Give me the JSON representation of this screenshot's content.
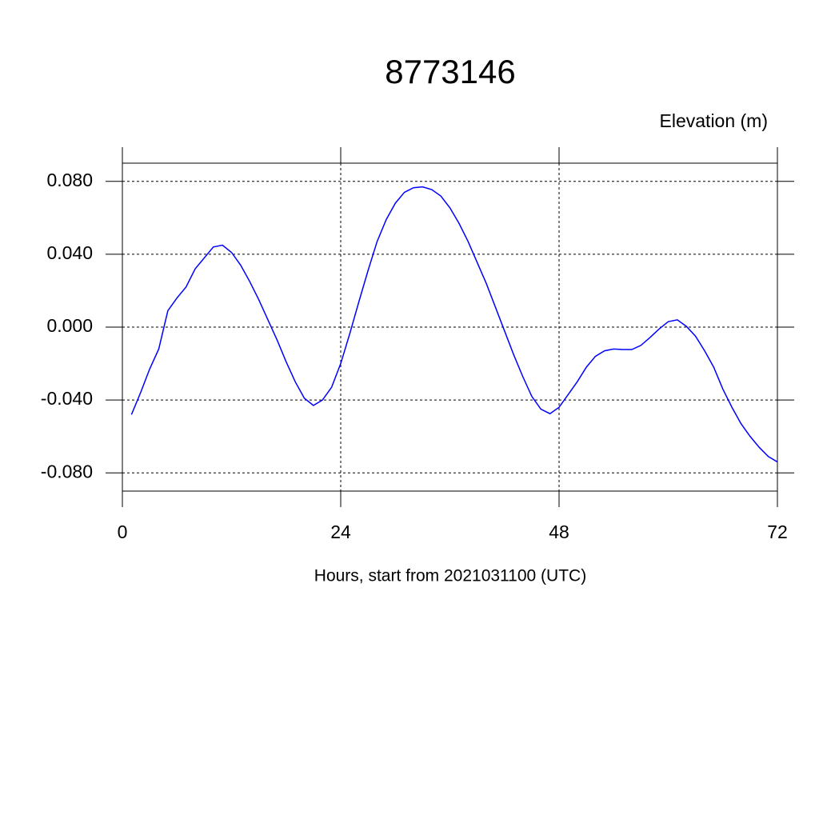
{
  "chart_data": {
    "type": "line",
    "title": "8773146",
    "y_axis_label": "Elevation (m)",
    "x_axis_label": "Hours, start from 2021031100 (UTC)",
    "x": [
      1,
      2,
      3,
      4,
      5,
      6,
      7,
      8,
      9,
      10,
      11,
      12,
      13,
      14,
      15,
      16,
      17,
      18,
      19,
      20,
      21,
      22,
      23,
      24,
      25,
      26,
      27,
      28,
      29,
      30,
      31,
      32,
      33,
      34,
      35,
      36,
      37,
      38,
      39,
      40,
      41,
      42,
      43,
      44,
      45,
      46,
      47,
      48,
      49,
      50,
      51,
      52,
      53,
      54,
      55,
      56,
      57,
      58,
      59,
      60,
      61,
      62,
      63,
      64,
      65,
      66,
      67,
      68,
      69,
      70,
      71,
      72
    ],
    "series": [
      {
        "name": "Elevation",
        "color": "#0000ff",
        "values": [
          -0.048,
          -0.036,
          -0.023,
          -0.012,
          0.009,
          0.016,
          0.022,
          0.032,
          0.038,
          0.044,
          0.045,
          0.041,
          0.034,
          0.025,
          0.015,
          0.004,
          -0.007,
          -0.019,
          -0.03,
          -0.039,
          -0.043,
          -0.04,
          -0.033,
          -0.02,
          -0.0035,
          0.014,
          0.031,
          0.047,
          0.059,
          0.068,
          0.074,
          0.0765,
          0.077,
          0.0755,
          0.072,
          0.0655,
          0.057,
          0.047,
          0.0355,
          0.024,
          0.011,
          -0.002,
          -0.015,
          -0.027,
          -0.038,
          -0.045,
          -0.0475,
          -0.044,
          -0.037,
          -0.03,
          -0.022,
          -0.016,
          -0.013,
          -0.012,
          -0.0123,
          -0.0123,
          -0.01,
          -0.0057,
          -0.001,
          0.003,
          0.004,
          0.0004,
          -0.005,
          -0.013,
          -0.022,
          -0.034,
          -0.044,
          -0.053,
          -0.06,
          -0.066,
          -0.071,
          -0.074
        ]
      }
    ],
    "xlim": [
      0,
      72
    ],
    "xticks": [
      0,
      24,
      48,
      72
    ],
    "ylim": [
      -0.09,
      0.09
    ],
    "yticks": [
      {
        "value": -0.08,
        "label": "-0.080"
      },
      {
        "value": -0.04,
        "label": "-0.040"
      },
      {
        "value": 0,
        "label": "0.000"
      },
      {
        "value": 0.04,
        "label": "0.040"
      },
      {
        "value": 0.08,
        "label": "0.080"
      }
    ],
    "grid": true
  }
}
